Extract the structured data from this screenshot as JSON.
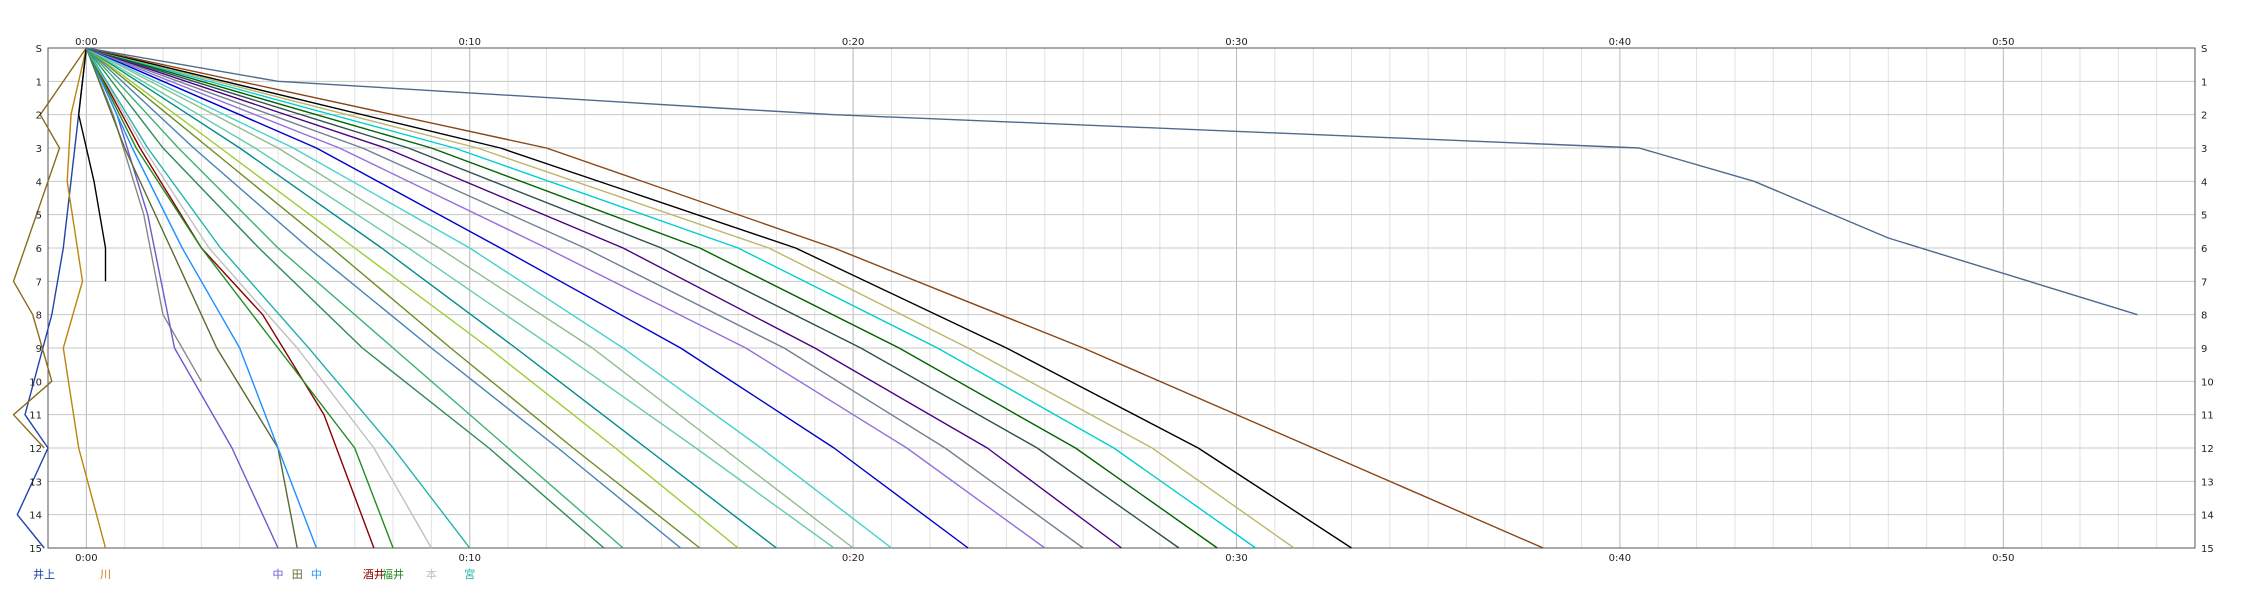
{
  "chart_data": {
    "type": "line",
    "title": "",
    "xlabel": "",
    "ylabel": "",
    "xlim": [
      -1,
      55
    ],
    "ylim": [
      0,
      15
    ],
    "grid": true,
    "x_ticks": [
      {
        "value": 0,
        "label": "0:00"
      },
      {
        "value": 10,
        "label": "0:10"
      },
      {
        "value": 20,
        "label": "0:20"
      },
      {
        "value": 30,
        "label": "0:30"
      },
      {
        "value": 40,
        "label": "0:40"
      },
      {
        "value": 50,
        "label": "0:50"
      }
    ],
    "y_ticks": [
      {
        "value": 0,
        "label": "S"
      },
      {
        "value": 1,
        "label": "1"
      },
      {
        "value": 2,
        "label": "2"
      },
      {
        "value": 3,
        "label": "3"
      },
      {
        "value": 4,
        "label": "4"
      },
      {
        "value": 5,
        "label": "5"
      },
      {
        "value": 6,
        "label": "6"
      },
      {
        "value": 7,
        "label": "7"
      },
      {
        "value": 8,
        "label": "8"
      },
      {
        "value": 9,
        "label": "9"
      },
      {
        "value": 10,
        "label": "10"
      },
      {
        "value": 11,
        "label": "11"
      },
      {
        "value": 12,
        "label": "12"
      },
      {
        "value": 13,
        "label": "13"
      },
      {
        "value": 14,
        "label": "14"
      },
      {
        "value": 15,
        "label": "15"
      }
    ],
    "start_label": "",
    "series": [
      {
        "color": "#2244aa",
        "label": "井上",
        "end_x": -1.1,
        "x": [
          0,
          -0.3,
          -0.6,
          -0.9,
          -1.6,
          -1.0,
          -1.8,
          -1.1
        ],
        "y": [
          0,
          3,
          6,
          8,
          11,
          12,
          14,
          15
        ]
      },
      {
        "color": "#8a6d1a",
        "label": "",
        "x": [
          0,
          -1.2,
          -0.7,
          -1.9,
          -1.4,
          -0.9,
          -1.9,
          -1.1
        ],
        "y": [
          0,
          2,
          3,
          7,
          8,
          10,
          11,
          12
        ]
      },
      {
        "color": "#b8860b",
        "label": "川",
        "end_x": 0.5,
        "x": [
          0,
          -0.4,
          -0.5,
          -0.1,
          -0.6,
          -0.2,
          0.5
        ],
        "y": [
          0,
          2,
          4,
          7,
          9,
          12,
          15
        ]
      },
      {
        "color": "#000000",
        "label": "",
        "x": [
          0,
          -0.2,
          0.2,
          0.5,
          0.5
        ],
        "y": [
          0,
          2,
          4,
          6,
          7
        ]
      },
      {
        "color": "#888888",
        "label": "",
        "x": [
          0,
          0.7,
          1.5,
          2.0,
          3.0
        ],
        "y": [
          0,
          2,
          5,
          8,
          10
        ]
      },
      {
        "color": "#6a5acd",
        "label": "中",
        "end_x": 5.0,
        "x": [
          0,
          0.8,
          1.6,
          2.3,
          3.8,
          5.0
        ],
        "y": [
          0,
          2,
          5,
          9,
          12,
          15
        ]
      },
      {
        "color": "#556b2f",
        "label": "田",
        "end_x": 5.5,
        "x": [
          0,
          1.0,
          2.2,
          3.4,
          5.0,
          5.5
        ],
        "y": [
          0,
          3,
          6,
          9,
          12,
          15
        ]
      },
      {
        "color": "#1e90ff",
        "label": "中",
        "end_x": 6.0,
        "x": [
          0,
          1.2,
          2.5,
          4.0,
          5.0,
          6.0
        ],
        "y": [
          0,
          3,
          6,
          9,
          12,
          15
        ]
      },
      {
        "color": "#8b0000",
        "label": "酒井",
        "end_x": 7.5,
        "x": [
          0,
          1.4,
          3.0,
          4.6,
          6.2,
          7.5
        ],
        "y": [
          0,
          3,
          6,
          8,
          11,
          15
        ]
      },
      {
        "color": "#228b22",
        "label": "福井",
        "end_x": 8.0,
        "x": [
          0,
          1.3,
          3.0,
          5.0,
          7.0,
          8.0
        ],
        "y": [
          0,
          3,
          6,
          9,
          12,
          15
        ]
      },
      {
        "color": "#c0c0c0",
        "label": "本",
        "end_x": 9.0,
        "x": [
          0,
          1.5,
          3.2,
          5.5,
          7.5,
          9.0
        ],
        "y": [
          0,
          3,
          6,
          9,
          12,
          15
        ]
      },
      {
        "color": "#20b2aa",
        "label": "宮",
        "end_x": 10.0,
        "x": [
          0,
          1.6,
          3.5,
          5.8,
          8.0,
          10.0
        ],
        "y": [
          0,
          3,
          6,
          9,
          12,
          15
        ]
      },
      {
        "color": "#2e8b57",
        "label": "",
        "end_x": 13.5,
        "x": [
          0,
          2.0,
          4.5,
          7.2,
          10.5,
          13.5
        ],
        "y": [
          0,
          3,
          6,
          9,
          12,
          15
        ]
      },
      {
        "color": "#3cb371",
        "label": "",
        "end_x": 14.0,
        "x": [
          0,
          2.4,
          5.0,
          8.0,
          11.0,
          14.0
        ],
        "y": [
          0,
          3,
          6,
          9,
          12,
          15
        ]
      },
      {
        "color": "#4682b4",
        "label": "",
        "end_x": 15.5,
        "x": [
          0,
          2.8,
          5.8,
          9.0,
          12.3,
          15.5
        ],
        "y": [
          0,
          3,
          6,
          9,
          12,
          15
        ]
      },
      {
        "color": "#6b8e23",
        "label": "",
        "end_x": 16.0,
        "x": [
          0,
          3.2,
          6.4,
          9.5,
          12.7,
          16.0
        ],
        "y": [
          0,
          3,
          6,
          9,
          12,
          15
        ]
      },
      {
        "color": "#9acd32",
        "label": "",
        "end_x": 17.0,
        "x": [
          0,
          3.5,
          7.0,
          10.5,
          13.8,
          17.0
        ],
        "y": [
          0,
          3,
          6,
          9,
          12,
          15
        ]
      },
      {
        "color": "#008b8b",
        "label": "",
        "end_x": 18.0,
        "x": [
          0,
          4.0,
          7.7,
          11.2,
          14.6,
          18.0
        ],
        "y": [
          0,
          3,
          6,
          9,
          12,
          15
        ]
      },
      {
        "color": "#66cdaa",
        "label": "",
        "end_x": 19.5,
        "x": [
          0,
          4.4,
          8.4,
          12.2,
          15.9,
          19.5
        ],
        "y": [
          0,
          3,
          6,
          9,
          12,
          15
        ]
      },
      {
        "color": "#8fbc8f",
        "label": "",
        "end_x": 20.0,
        "x": [
          0,
          5.0,
          9.2,
          13.2,
          16.6,
          20.0
        ],
        "y": [
          0,
          3,
          6,
          9,
          12,
          15
        ]
      },
      {
        "color": "#48d1cc",
        "label": "",
        "end_x": 21.0,
        "x": [
          0,
          5.4,
          10.0,
          14.0,
          17.6,
          21.0
        ],
        "y": [
          0,
          3,
          6,
          9,
          12,
          15
        ]
      },
      {
        "color": "#0000cd",
        "label": "",
        "end_x": 23.0,
        "x": [
          0,
          6.0,
          10.8,
          15.5,
          19.5,
          23.0
        ],
        "y": [
          0,
          3,
          6,
          9,
          12,
          15
        ]
      },
      {
        "color": "#9370db",
        "label": "",
        "end_x": 25.0,
        "x": [
          0,
          6.6,
          12.0,
          17.2,
          21.4,
          25.0
        ],
        "y": [
          0,
          3,
          6,
          9,
          12,
          15
        ]
      },
      {
        "color": "#708090",
        "label": "",
        "end_x": 26.0,
        "x": [
          0,
          7.2,
          13.0,
          18.2,
          22.4,
          26.0
        ],
        "y": [
          0,
          3,
          6,
          9,
          12,
          15
        ]
      },
      {
        "color": "#4b0082",
        "label": "",
        "end_x": 27.0,
        "x": [
          0,
          7.8,
          14.0,
          19.0,
          23.5,
          27.0
        ],
        "y": [
          0,
          3,
          6,
          9,
          12,
          15
        ]
      },
      {
        "color": "#2f4f4f",
        "label": "",
        "end_x": 28.5,
        "x": [
          0,
          8.4,
          15.0,
          20.2,
          24.8,
          28.5
        ],
        "y": [
          0,
          3,
          6,
          9,
          12,
          15
        ]
      },
      {
        "color": "#006400",
        "label": "",
        "end_x": 29.5,
        "x": [
          0,
          9.0,
          16.0,
          21.2,
          25.8,
          29.5
        ],
        "y": [
          0,
          3,
          6,
          9,
          12,
          15
        ]
      },
      {
        "color": "#00ced1",
        "label": "",
        "end_x": 30.5,
        "x": [
          0,
          9.6,
          17.0,
          22.2,
          26.8,
          30.5
        ],
        "y": [
          0,
          3,
          6,
          9,
          12,
          15
        ]
      },
      {
        "color": "#bdb76b",
        "label": "",
        "end_x": 31.5,
        "x": [
          0,
          10.2,
          17.8,
          23.0,
          27.8,
          31.5
        ],
        "y": [
          0,
          3,
          6,
          9,
          12,
          15
        ]
      },
      {
        "color": "#000000",
        "label": "",
        "end_x": 33.0,
        "x": [
          0,
          10.8,
          18.5,
          24.0,
          29.0,
          33.0
        ],
        "y": [
          0,
          3,
          6,
          9,
          12,
          15
        ]
      },
      {
        "color": "#8b4513",
        "label": "",
        "end_x": 38.0,
        "x": [
          0,
          12.0,
          19.5,
          26.0,
          32.0,
          38.0
        ],
        "y": [
          0,
          3,
          6,
          9,
          12,
          15
        ]
      },
      {
        "color": "#4e6b8c",
        "label": "",
        "end_x": 53.5,
        "x": [
          0,
          5.0,
          16.5,
          19.5,
          40.5,
          43.5,
          47.0,
          53.5
        ],
        "y": [
          0,
          1,
          1.8,
          2.0,
          3.0,
          4.0,
          5.7,
          8.0
        ]
      }
    ]
  }
}
